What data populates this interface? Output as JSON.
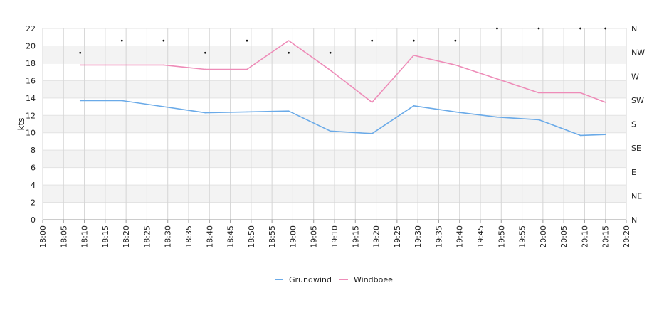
{
  "chart_data": {
    "type": "line",
    "ylabel": "kts",
    "ylim": [
      0,
      22
    ],
    "yticks": [
      0,
      2,
      4,
      6,
      8,
      10,
      12,
      14,
      16,
      18,
      20,
      22
    ],
    "right_axis_labels": [
      "N",
      "NE",
      "E",
      "SE",
      "S",
      "SW",
      "W",
      "NW",
      "N"
    ],
    "x_ticks": [
      "18:00",
      "18:05",
      "18:10",
      "18:15",
      "18:20",
      "18:25",
      "18:30",
      "18:35",
      "18:40",
      "18:45",
      "18:50",
      "18:55",
      "19:00",
      "19:05",
      "19:10",
      "19:15",
      "19:20",
      "19:25",
      "19:30",
      "19:35",
      "19:40",
      "19:45",
      "19:50",
      "19:55",
      "20:00",
      "20:05",
      "20:10",
      "20:15",
      "20:20"
    ],
    "x_range": [
      "18:00",
      "20:20"
    ],
    "grid": true,
    "legend_position": "bottom-center",
    "series": [
      {
        "name": "Grundwind",
        "color": "#6aaae8",
        "points": [
          {
            "x": "18:09",
            "y": 13.7
          },
          {
            "x": "18:19",
            "y": 13.7
          },
          {
            "x": "18:29",
            "y": 13.0
          },
          {
            "x": "18:39",
            "y": 12.3
          },
          {
            "x": "18:49",
            "y": 12.4
          },
          {
            "x": "18:59",
            "y": 12.5
          },
          {
            "x": "19:09",
            "y": 10.2
          },
          {
            "x": "19:19",
            "y": 9.9
          },
          {
            "x": "19:29",
            "y": 13.1
          },
          {
            "x": "19:39",
            "y": 12.4
          },
          {
            "x": "19:49",
            "y": 11.8
          },
          {
            "x": "19:59",
            "y": 11.5
          },
          {
            "x": "20:09",
            "y": 9.7
          },
          {
            "x": "20:15",
            "y": 9.8
          }
        ]
      },
      {
        "name": "Windboee",
        "color": "#ee8cb8",
        "points": [
          {
            "x": "18:09",
            "y": 17.8
          },
          {
            "x": "18:19",
            "y": 17.8
          },
          {
            "x": "18:29",
            "y": 17.8
          },
          {
            "x": "18:39",
            "y": 17.3
          },
          {
            "x": "18:49",
            "y": 17.3
          },
          {
            "x": "18:59",
            "y": 20.6
          },
          {
            "x": "19:09",
            "y": 17.2
          },
          {
            "x": "19:19",
            "y": 13.5
          },
          {
            "x": "19:29",
            "y": 18.9
          },
          {
            "x": "19:39",
            "y": 17.8
          },
          {
            "x": "19:49",
            "y": 16.2
          },
          {
            "x": "19:59",
            "y": 14.6
          },
          {
            "x": "20:09",
            "y": 14.6
          },
          {
            "x": "20:15",
            "y": 13.5
          }
        ]
      }
    ],
    "direction_markers": [
      {
        "x": "18:09",
        "y": 19.2
      },
      {
        "x": "18:19",
        "y": 20.6
      },
      {
        "x": "18:29",
        "y": 20.6
      },
      {
        "x": "18:39",
        "y": 19.2
      },
      {
        "x": "18:49",
        "y": 20.6
      },
      {
        "x": "18:59",
        "y": 19.2
      },
      {
        "x": "19:09",
        "y": 19.2
      },
      {
        "x": "19:19",
        "y": 20.6
      },
      {
        "x": "19:29",
        "y": 20.6
      },
      {
        "x": "19:39",
        "y": 20.6
      },
      {
        "x": "19:49",
        "y": 22
      },
      {
        "x": "19:59",
        "y": 22
      },
      {
        "x": "20:09",
        "y": 22
      },
      {
        "x": "20:15",
        "y": 22
      }
    ]
  }
}
